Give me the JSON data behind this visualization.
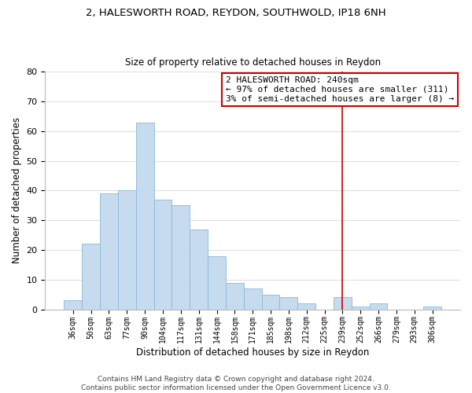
{
  "title": "2, HALESWORTH ROAD, REYDON, SOUTHWOLD, IP18 6NH",
  "subtitle": "Size of property relative to detached houses in Reydon",
  "xlabel": "Distribution of detached houses by size in Reydon",
  "ylabel": "Number of detached properties",
  "bar_labels": [
    "36sqm",
    "50sqm",
    "63sqm",
    "77sqm",
    "90sqm",
    "104sqm",
    "117sqm",
    "131sqm",
    "144sqm",
    "158sqm",
    "171sqm",
    "185sqm",
    "198sqm",
    "212sqm",
    "225sqm",
    "239sqm",
    "252sqm",
    "266sqm",
    "279sqm",
    "293sqm",
    "306sqm"
  ],
  "bar_values": [
    3,
    22,
    39,
    40,
    63,
    37,
    35,
    27,
    18,
    9,
    7,
    5,
    4,
    2,
    0,
    4,
    1,
    2,
    0,
    0,
    1
  ],
  "bar_color": "#c6dcee",
  "bar_edge_color": "#8ab8d8",
  "vline_x_idx": 15,
  "vline_color": "#cc0000",
  "annotation_title": "2 HALESWORTH ROAD: 240sqm",
  "annotation_line1": "← 97% of detached houses are smaller (311)",
  "annotation_line2": "3% of semi-detached houses are larger (8) →",
  "annotation_box_facecolor": "#ffffff",
  "annotation_box_edgecolor": "#cc0000",
  "footer1": "Contains HM Land Registry data © Crown copyright and database right 2024.",
  "footer2": "Contains public sector information licensed under the Open Government Licence v3.0.",
  "ylim": [
    0,
    80
  ],
  "yticks": [
    0,
    10,
    20,
    30,
    40,
    50,
    60,
    70,
    80
  ],
  "grid_color": "#e0e0e0",
  "background_color": "#ffffff",
  "title_fontsize": 9.5,
  "subtitle_fontsize": 8.5,
  "xlabel_fontsize": 8.5,
  "ylabel_fontsize": 8.5,
  "xtick_fontsize": 7,
  "ytick_fontsize": 8,
  "footer_fontsize": 6.5,
  "ann_fontsize": 8
}
